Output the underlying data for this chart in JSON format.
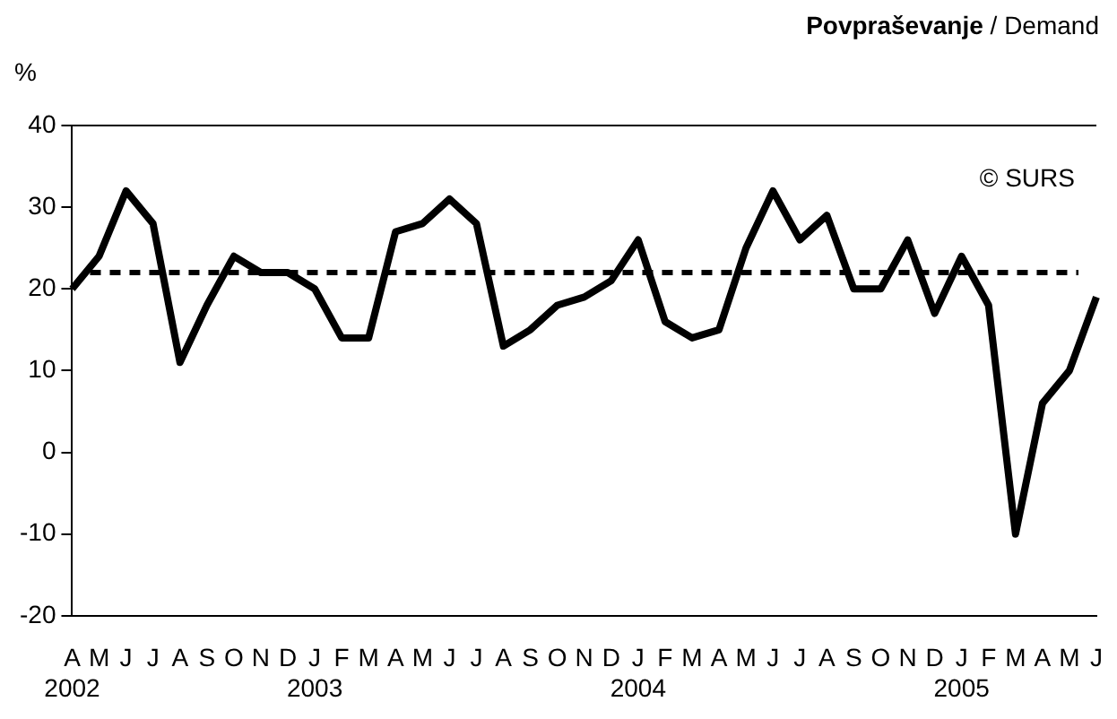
{
  "chart_data": {
    "type": "line",
    "title": "Povpraševanje / Demand",
    "ylabel": "%",
    "categories": [
      "A\n2002",
      "M",
      "J",
      "J",
      "A",
      "S",
      "O",
      "N",
      "D",
      "J\n2003",
      "F",
      "M",
      "A",
      "M",
      "J",
      "J",
      "A",
      "S",
      "O",
      "N",
      "D",
      "J\n2004",
      "F",
      "M",
      "A",
      "M",
      "J",
      "J",
      "A",
      "S",
      "O",
      "N",
      "D",
      "J\n2005",
      "F",
      "M",
      "A",
      "M",
      "J"
    ],
    "series": [
      {
        "color": "#000000",
        "values": [
          20,
          24,
          32,
          28,
          11,
          18,
          24,
          22,
          22,
          20,
          14,
          14,
          27,
          28,
          31,
          28,
          13,
          15,
          18,
          19,
          21,
          26,
          16,
          14,
          15,
          25,
          32,
          26,
          29,
          20,
          20,
          26,
          17,
          24,
          18,
          -10,
          6,
          10,
          19
        ]
      }
    ],
    "ylim": [
      -20,
      40
    ],
    "yticks": [
      -20,
      -10,
      0,
      10,
      20,
      30,
      40
    ],
    "ref_lines": [
      {
        "axis": "y",
        "value": 22,
        "color": "#000000",
        "line_style": "dashed"
      }
    ],
    "annotations": [
      "© SURS"
    ],
    "grid": false,
    "legend": false,
    "marker": "none",
    "line_style": "solid"
  }
}
